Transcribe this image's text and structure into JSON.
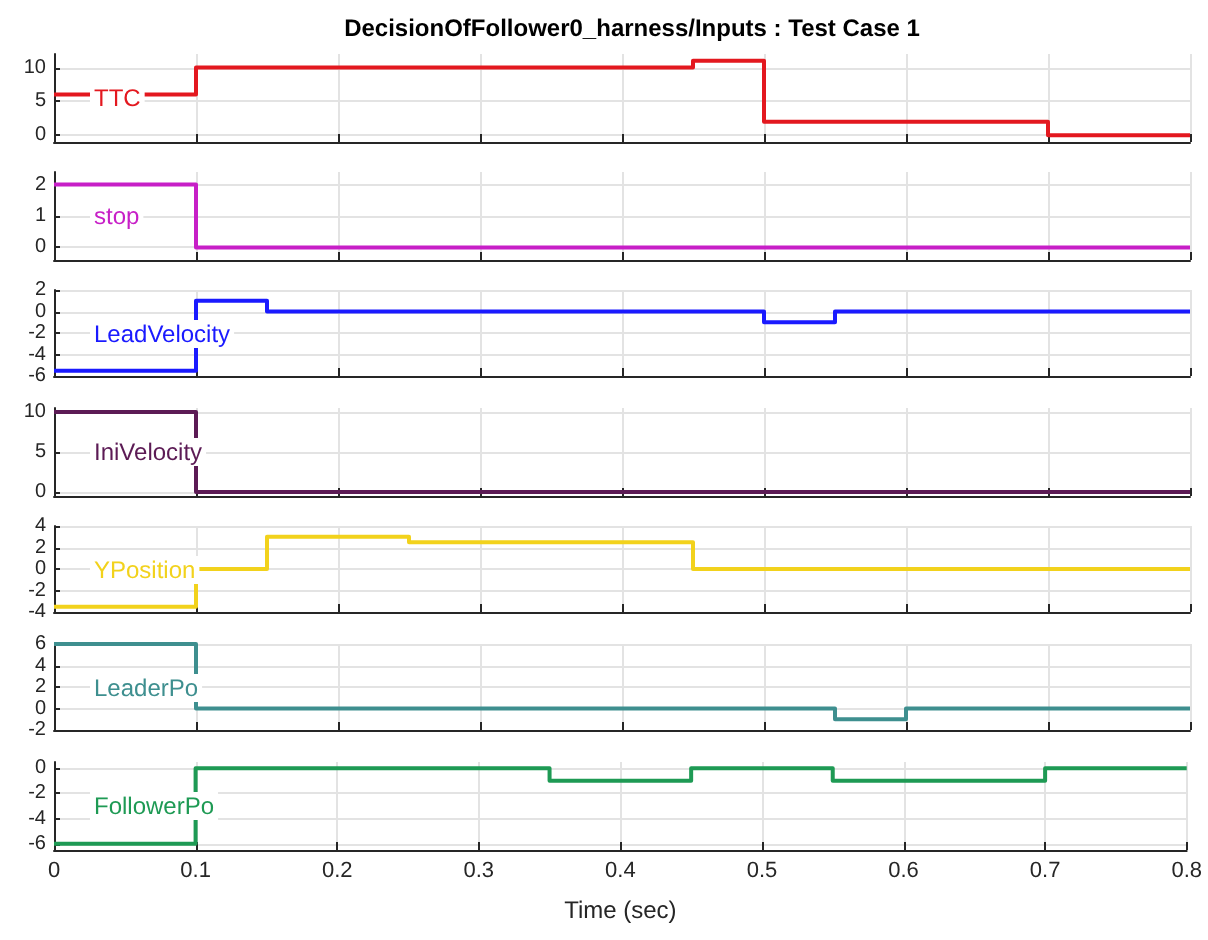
{
  "chart_data": [
    {
      "type": "step",
      "title": "DecisionOfFollower0_harness/Inputs : Test Case 1",
      "x": [
        0,
        0.1,
        0.45,
        0.5,
        0.7,
        0.8
      ],
      "series": [
        {
          "name": "TTC",
          "color": "#e3181f",
          "values": [
            6,
            10,
            11,
            2,
            0,
            0
          ]
        }
      ],
      "xlim": [
        0,
        0.8
      ],
      "xticks": [
        0,
        0.1,
        0.2,
        0.3,
        0.4,
        0.5,
        0.6,
        0.7,
        0.8
      ],
      "ylim": [
        -1,
        12
      ],
      "yticks": [
        0,
        5,
        10
      ],
      "grid": true,
      "tick_labels": "y"
    },
    {
      "type": "step",
      "x": [
        0,
        0.1,
        0.8
      ],
      "series": [
        {
          "name": "stop",
          "color": "#c71fc7",
          "values": [
            2,
            0,
            0
          ]
        }
      ],
      "xlim": [
        0,
        0.8
      ],
      "xticks": [
        0,
        0.1,
        0.2,
        0.3,
        0.4,
        0.5,
        0.6,
        0.7,
        0.8
      ],
      "ylim": [
        -0.4,
        2.4
      ],
      "yticks": [
        0,
        1,
        2
      ],
      "grid": true,
      "tick_labels": "y"
    },
    {
      "type": "step",
      "x": [
        0,
        0.1,
        0.15,
        0.5,
        0.55,
        0.8
      ],
      "series": [
        {
          "name": "LeadVelocity",
          "color": "#1a1aff",
          "values": [
            -5.5,
            1,
            0,
            -1,
            0,
            0
          ]
        }
      ],
      "xlim": [
        0,
        0.8
      ],
      "xticks": [
        0,
        0.1,
        0.2,
        0.3,
        0.4,
        0.5,
        0.6,
        0.7,
        0.8
      ],
      "ylim": [
        -6,
        2
      ],
      "yticks": [
        -6,
        -4,
        -2,
        0,
        2
      ],
      "grid": true,
      "tick_labels": "y"
    },
    {
      "type": "step",
      "x": [
        0,
        0.1,
        0.8
      ],
      "series": [
        {
          "name": "IniVelocity",
          "color": "#5c1b55",
          "values": [
            10,
            0,
            0
          ]
        }
      ],
      "xlim": [
        0,
        0.8
      ],
      "xticks": [
        0,
        0.1,
        0.2,
        0.3,
        0.4,
        0.5,
        0.6,
        0.7,
        0.8
      ],
      "ylim": [
        -0.5,
        10.5
      ],
      "yticks": [
        0,
        5,
        10
      ],
      "grid": true,
      "tick_labels": "y"
    },
    {
      "type": "step",
      "x": [
        0,
        0.1,
        0.15,
        0.25,
        0.45,
        0.8
      ],
      "series": [
        {
          "name": "YPosition",
          "color": "#f2d21c",
          "values": [
            -3.5,
            0,
            3,
            2.5,
            0,
            0
          ]
        }
      ],
      "xlim": [
        0,
        0.8
      ],
      "xticks": [
        0,
        0.1,
        0.2,
        0.3,
        0.4,
        0.5,
        0.6,
        0.7,
        0.8
      ],
      "ylim": [
        -4,
        4
      ],
      "yticks": [
        -4,
        -2,
        0,
        2,
        4
      ],
      "grid": true,
      "tick_labels": "y"
    },
    {
      "type": "step",
      "x": [
        0,
        0.1,
        0.55,
        0.6,
        0.8
      ],
      "series": [
        {
          "name": "LeaderPo",
          "color": "#3e8f8f",
          "values": [
            6,
            0,
            -1,
            0,
            0
          ]
        }
      ],
      "xlim": [
        0,
        0.8
      ],
      "xticks": [
        0,
        0.1,
        0.2,
        0.3,
        0.4,
        0.5,
        0.6,
        0.7,
        0.8
      ],
      "ylim": [
        -2,
        6
      ],
      "yticks": [
        -2,
        0,
        2,
        4,
        6
      ],
      "grid": true,
      "tick_labels": "y"
    },
    {
      "type": "step",
      "xlabel": "Time (sec)",
      "x": [
        0,
        0.1,
        0.35,
        0.45,
        0.55,
        0.7,
        0.8
      ],
      "series": [
        {
          "name": "FollowerPo",
          "color": "#1e9a54",
          "values": [
            -6,
            0,
            -1,
            0,
            -1,
            0,
            0
          ]
        }
      ],
      "xlim": [
        0,
        0.8
      ],
      "xticks": [
        0,
        0.1,
        0.2,
        0.3,
        0.4,
        0.5,
        0.6,
        0.7,
        0.8
      ],
      "ylim": [
        -6.5,
        0.5
      ],
      "yticks": [
        -6,
        -4,
        -2,
        0
      ],
      "grid": true
    }
  ]
}
